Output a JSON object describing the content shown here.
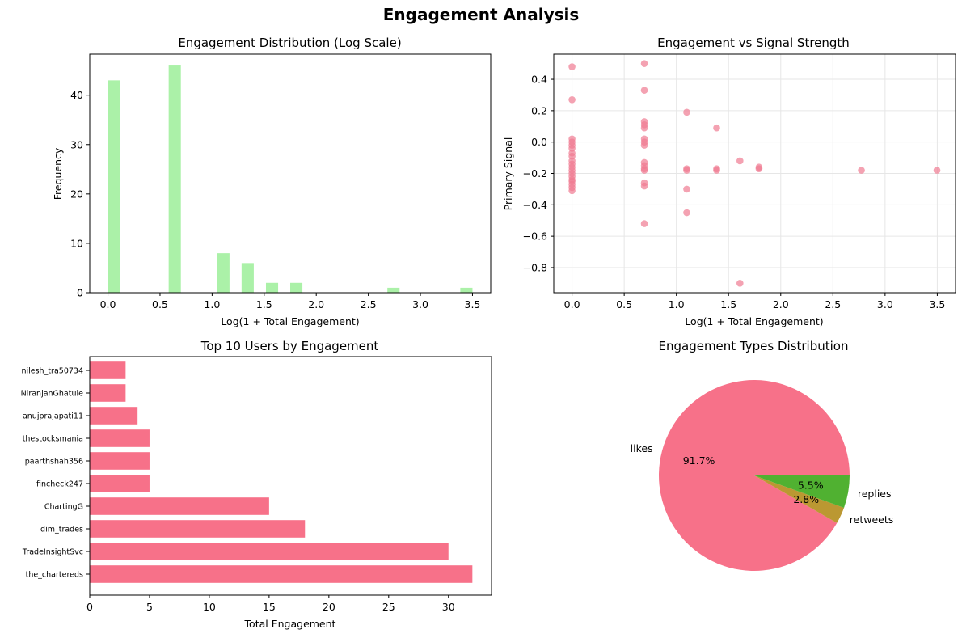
{
  "figure": {
    "suptitle": "Engagement Analysis"
  },
  "colors": {
    "hist": "#abf1a8",
    "scatter": "#f07a92",
    "bar": "#f77189",
    "likes": "#f77189",
    "retweets": "#bb9832",
    "replies": "#50b131"
  },
  "chart_data": [
    {
      "type": "bar",
      "subtype": "histogram",
      "title": "Engagement Distribution (Log Scale)",
      "xlabel": "Log(1 + Total Engagement)",
      "ylabel": "Frequency",
      "xlim": [
        -0.175,
        3.675
      ],
      "ylim": [
        0,
        48.3
      ],
      "xticks": [
        0.0,
        0.5,
        1.0,
        1.5,
        2.0,
        2.5,
        3.0,
        3.5
      ],
      "xtick_labels": [
        "0.0",
        "0.5",
        "1.0",
        "1.5",
        "2.0",
        "2.5",
        "3.0",
        "3.5"
      ],
      "yticks": [
        0,
        10,
        20,
        30,
        40
      ],
      "ytick_labels": [
        "0",
        "10",
        "20",
        "30",
        "40"
      ],
      "bin_width": 0.117,
      "bins": [
        {
          "x": 0.0,
          "count": 43
        },
        {
          "x": 0.117,
          "count": 0
        },
        {
          "x": 0.233,
          "count": 0
        },
        {
          "x": 0.35,
          "count": 0
        },
        {
          "x": 0.467,
          "count": 0
        },
        {
          "x": 0.583,
          "count": 46
        },
        {
          "x": 0.7,
          "count": 0
        },
        {
          "x": 0.817,
          "count": 0
        },
        {
          "x": 0.933,
          "count": 0
        },
        {
          "x": 1.05,
          "count": 8
        },
        {
          "x": 1.167,
          "count": 0
        },
        {
          "x": 1.283,
          "count": 6
        },
        {
          "x": 1.4,
          "count": 0
        },
        {
          "x": 1.517,
          "count": 2
        },
        {
          "x": 1.633,
          "count": 0
        },
        {
          "x": 1.75,
          "count": 2
        },
        {
          "x": 2.683,
          "count": 1
        },
        {
          "x": 3.383,
          "count": 1
        }
      ]
    },
    {
      "type": "scatter",
      "title": "Engagement vs Signal Strength",
      "xlabel": "Log(1 + Total Engagement)",
      "ylabel": "Primary Signal",
      "xlim": [
        -0.175,
        3.675
      ],
      "ylim": [
        -0.96,
        0.56
      ],
      "grid": true,
      "xticks": [
        0.0,
        0.5,
        1.0,
        1.5,
        2.0,
        2.5,
        3.0,
        3.5
      ],
      "xtick_labels": [
        "0.0",
        "0.5",
        "1.0",
        "1.5",
        "2.0",
        "2.5",
        "3.0",
        "3.5"
      ],
      "yticks": [
        0.4,
        0.2,
        0.0,
        -0.2,
        -0.4,
        -0.6,
        -0.8
      ],
      "ytick_labels": [
        "0.4",
        "0.2",
        "0.0",
        "−0.2",
        "−0.4",
        "−0.6",
        "−0.8"
      ],
      "points": [
        [
          0,
          0.48
        ],
        [
          0,
          0.27
        ],
        [
          0,
          0.02
        ],
        [
          0,
          0.0
        ],
        [
          0,
          -0.02
        ],
        [
          0,
          -0.04
        ],
        [
          0,
          -0.07
        ],
        [
          0,
          -0.09
        ],
        [
          0,
          -0.12
        ],
        [
          0,
          -0.14
        ],
        [
          0,
          -0.16
        ],
        [
          0,
          -0.18
        ],
        [
          0,
          -0.2
        ],
        [
          0,
          -0.22
        ],
        [
          0,
          -0.24
        ],
        [
          0,
          -0.25
        ],
        [
          0,
          -0.27
        ],
        [
          0,
          -0.29
        ],
        [
          0,
          -0.31
        ],
        [
          0.693,
          0.5
        ],
        [
          0.693,
          0.33
        ],
        [
          0.693,
          0.13
        ],
        [
          0.693,
          0.11
        ],
        [
          0.693,
          0.09
        ],
        [
          0.693,
          0.02
        ],
        [
          0.693,
          0.0
        ],
        [
          0.693,
          -0.02
        ],
        [
          0.693,
          -0.13
        ],
        [
          0.693,
          -0.15
        ],
        [
          0.693,
          -0.17
        ],
        [
          0.693,
          -0.18
        ],
        [
          0.693,
          -0.26
        ],
        [
          0.693,
          -0.28
        ],
        [
          0.693,
          -0.52
        ],
        [
          1.099,
          0.19
        ],
        [
          1.099,
          -0.17
        ],
        [
          1.099,
          -0.18
        ],
        [
          1.099,
          -0.3
        ],
        [
          1.099,
          -0.45
        ],
        [
          1.386,
          0.09
        ],
        [
          1.386,
          -0.17
        ],
        [
          1.386,
          -0.18
        ],
        [
          1.609,
          -0.12
        ],
        [
          1.609,
          -0.9
        ],
        [
          1.792,
          -0.16
        ],
        [
          1.792,
          -0.17
        ],
        [
          2.773,
          -0.18
        ],
        [
          3.497,
          -0.18
        ]
      ]
    },
    {
      "type": "bar",
      "orientation": "horizontal",
      "title": "Top 10 Users by Engagement",
      "xlabel": "Total Engagement",
      "xlim": [
        0,
        33.6
      ],
      "xticks": [
        0,
        5,
        10,
        15,
        20,
        25,
        30
      ],
      "xtick_labels": [
        "0",
        "5",
        "10",
        "15",
        "20",
        "25",
        "30"
      ],
      "categories": [
        "the_chartereds",
        "TradeInsightSvc",
        "dim_trades",
        "ChartingG",
        "fincheck247",
        "paarthshah356",
        "thestocksmania",
        "anujprajapati11",
        "NiranjanGhatule",
        "nilesh_tra50734"
      ],
      "values": [
        32,
        30,
        18,
        15,
        5,
        5,
        5,
        4,
        3,
        3
      ]
    },
    {
      "type": "pie",
      "title": "Engagement Types Distribution",
      "labels": [
        "likes",
        "retweets",
        "replies"
      ],
      "pct_labels": [
        "91.7%",
        "2.8%",
        "5.5%"
      ],
      "values": [
        91.7,
        2.8,
        5.5
      ]
    }
  ]
}
